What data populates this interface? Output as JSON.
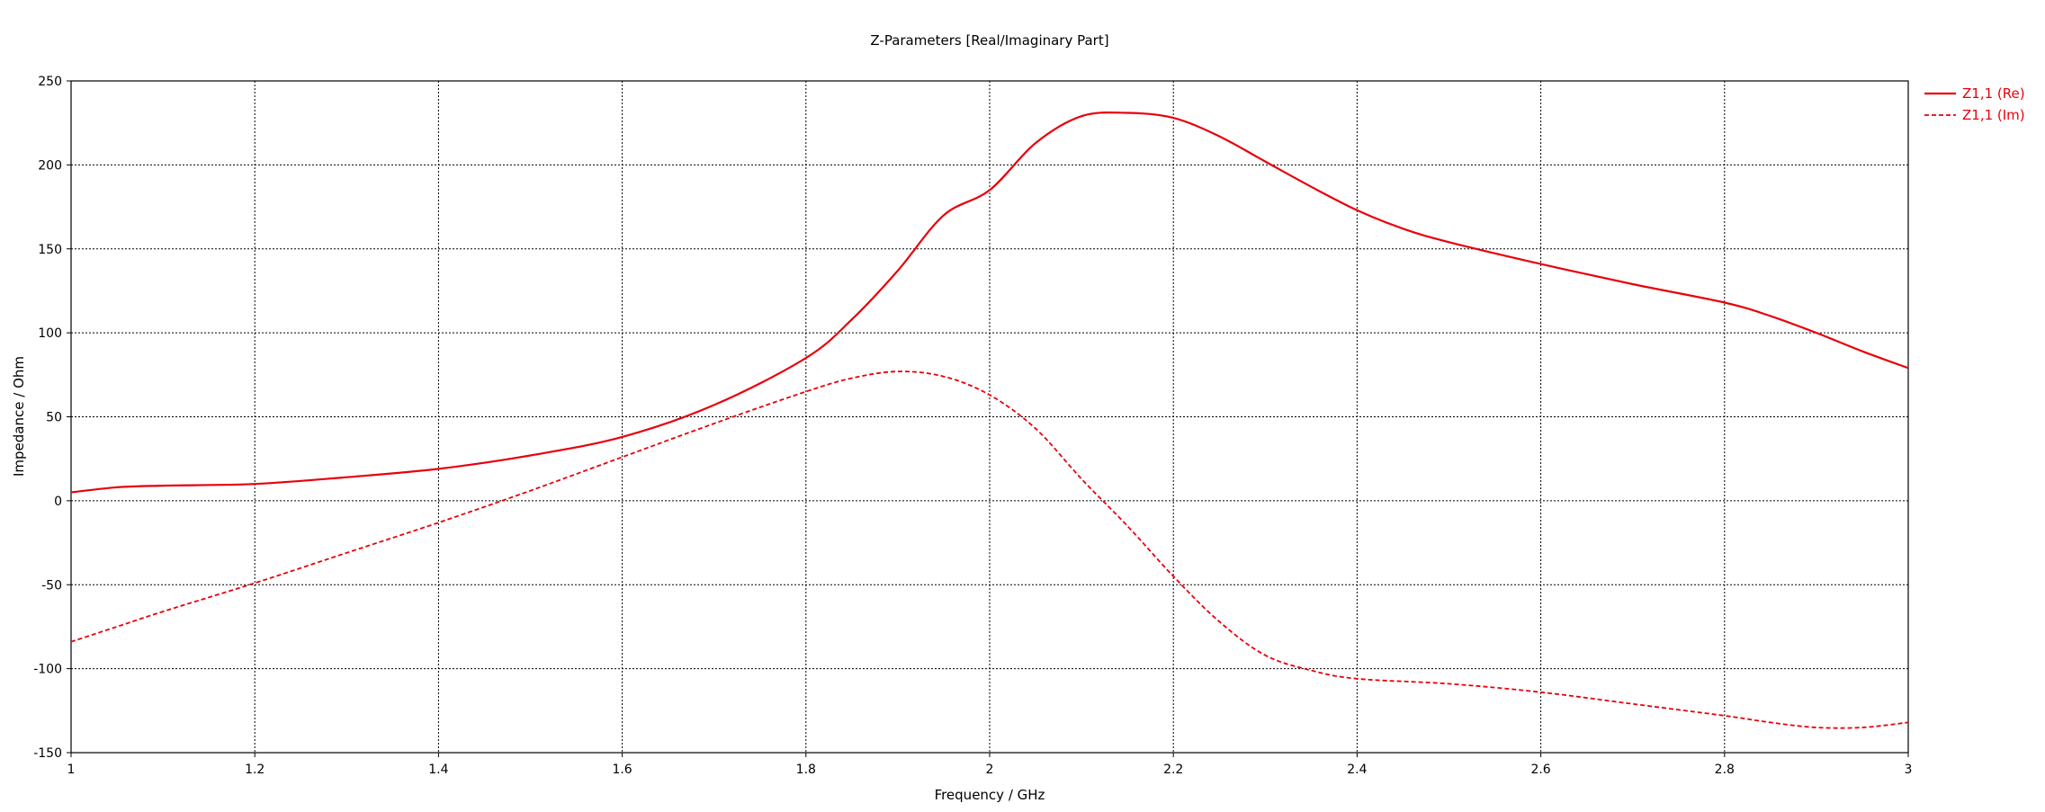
{
  "chart_data": {
    "type": "line",
    "title": "Z-Parameters [Real/Imaginary Part]",
    "xlabel": "Frequency / GHz",
    "ylabel": "Impedance / Ohm",
    "xlim": [
      1,
      3
    ],
    "ylim": [
      -150,
      250
    ],
    "x_ticks": [
      1,
      1.2,
      1.4,
      1.6,
      1.8,
      2,
      2.2,
      2.4,
      2.6,
      2.8,
      3
    ],
    "x_tick_labels": [
      "1",
      "1.2",
      "1.4",
      "1.6",
      "1.8",
      "2",
      "2.2",
      "2.4",
      "2.6",
      "2.8",
      "3"
    ],
    "y_ticks": [
      -150,
      -100,
      -50,
      0,
      50,
      100,
      150,
      200,
      250
    ],
    "y_tick_labels": [
      "-150",
      "-100",
      "-50",
      "0",
      "50",
      "100",
      "150",
      "200",
      "250"
    ],
    "grid": true,
    "legend_position": "top-right",
    "series_color": "#e8000b",
    "series": [
      {
        "name": "Z1,1 (Re)",
        "style": "solid",
        "x": [
          1.0,
          1.05,
          1.1,
          1.2,
          1.3,
          1.4,
          1.5,
          1.6,
          1.7,
          1.8,
          1.85,
          1.9,
          1.95,
          2.0,
          2.05,
          2.1,
          2.15,
          2.2,
          2.25,
          2.3,
          2.35,
          2.4,
          2.45,
          2.5,
          2.6,
          2.7,
          2.8,
          2.85,
          2.9,
          2.95,
          3.0
        ],
        "y": [
          5,
          8,
          9,
          10,
          14,
          19,
          27,
          38,
          57,
          85,
          108,
          137,
          170,
          185,
          213,
          229,
          231,
          228,
          217,
          202,
          187,
          173,
          162,
          154,
          141,
          129,
          118,
          110,
          100,
          89,
          79
        ]
      },
      {
        "name": "Z1,1 (Im)",
        "style": "dashed",
        "x": [
          1.0,
          1.05,
          1.1,
          1.2,
          1.3,
          1.4,
          1.5,
          1.6,
          1.7,
          1.8,
          1.85,
          1.9,
          1.95,
          2.0,
          2.05,
          2.1,
          2.15,
          2.2,
          2.25,
          2.3,
          2.35,
          2.4,
          2.5,
          2.6,
          2.7,
          2.8,
          2.85,
          2.9,
          2.95,
          3.0
        ],
        "y": [
          -84,
          -75,
          -66,
          -49,
          -31,
          -13,
          6,
          26,
          46,
          65,
          73,
          77,
          74,
          63,
          43,
          13,
          -15,
          -45,
          -72,
          -92,
          -101,
          -106,
          -109,
          -114,
          -121,
          -128,
          -132,
          -135,
          -135,
          -132
        ]
      }
    ]
  }
}
